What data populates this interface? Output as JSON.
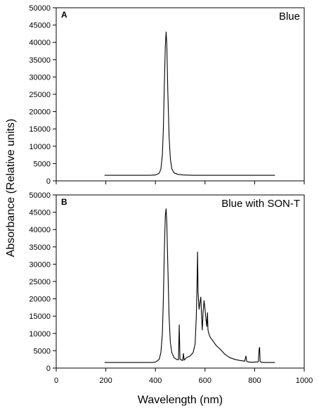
{
  "ylabel": "Absorbance (Relative units)",
  "xlabel": "Wavelength (nm)",
  "x_ticks": [
    "0",
    "200",
    "400",
    "600",
    "800",
    "1000"
  ],
  "y_ticks": [
    "0",
    "5000",
    "10000",
    "15000",
    "20000",
    "25000",
    "30000",
    "35000",
    "40000",
    "45000",
    "50000"
  ],
  "chart_data": [
    {
      "type": "line",
      "panel_letter": "A",
      "label": "Blue",
      "xlim": [
        0,
        1000
      ],
      "ylim": [
        0,
        50000
      ],
      "grid": false,
      "x": [
        195,
        380,
        400,
        415,
        422,
        428,
        432,
        436,
        440,
        443,
        446,
        450,
        455,
        460,
        466,
        475,
        490,
        510,
        550,
        600,
        700,
        800,
        882
      ],
      "y": [
        1600,
        1600,
        1700,
        2200,
        3400,
        7500,
        15000,
        28000,
        39000,
        43000,
        39500,
        26000,
        13000,
        6500,
        3500,
        2300,
        1900,
        1700,
        1600,
        1600,
        1600,
        1600,
        1600
      ]
    },
    {
      "type": "line",
      "panel_letter": "B",
      "label": "Blue with SON-T",
      "xlim": [
        0,
        1000
      ],
      "ylim": [
        0,
        50000
      ],
      "grid": false,
      "x": [
        195,
        380,
        400,
        415,
        422,
        428,
        432,
        436,
        440,
        443,
        446,
        450,
        455,
        460,
        466,
        475,
        485,
        493,
        496,
        499,
        505,
        510,
        513,
        516,
        525,
        540,
        552,
        560,
        565,
        568,
        570,
        572,
        576,
        580,
        583,
        586,
        589,
        592,
        596,
        600,
        604,
        607,
        610,
        612,
        615,
        620,
        630,
        645,
        660,
        680,
        700,
        720,
        740,
        760,
        765,
        768,
        771,
        780,
        800,
        815,
        818,
        820,
        822,
        825,
        840,
        860,
        882
      ],
      "y": [
        1600,
        1600,
        1700,
        2500,
        4500,
        10000,
        20000,
        34000,
        44000,
        46000,
        42000,
        30000,
        15000,
        7500,
        4500,
        3000,
        2500,
        2400,
        12500,
        2600,
        2300,
        2200,
        4200,
        2300,
        3000,
        3500,
        4500,
        7000,
        15000,
        25000,
        33500,
        22000,
        17000,
        19000,
        20500,
        15000,
        11000,
        16000,
        19500,
        17000,
        14000,
        12000,
        16000,
        11000,
        10000,
        9000,
        8000,
        6500,
        5500,
        4000,
        3000,
        2500,
        2200,
        2000,
        3500,
        2000,
        1800,
        1700,
        1700,
        1800,
        5500,
        6000,
        2000,
        1700,
        1600,
        1600,
        1600
      ]
    }
  ]
}
